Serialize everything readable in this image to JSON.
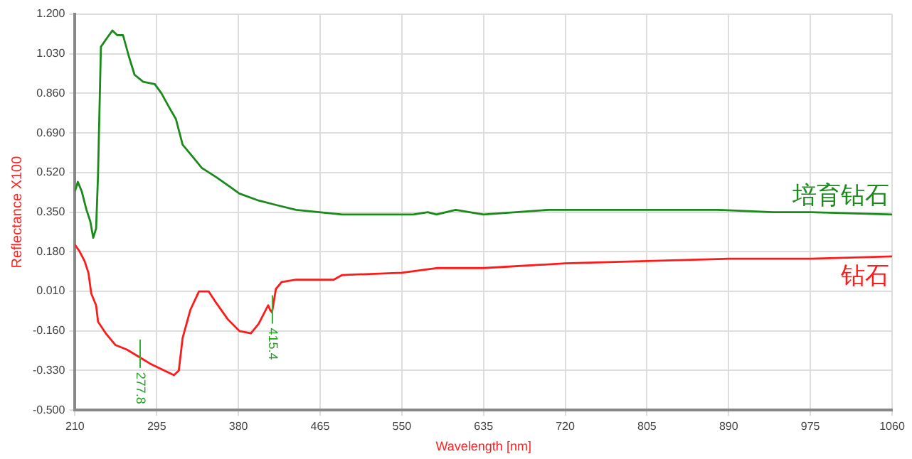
{
  "chart_data": {
    "type": "line",
    "xlabel": "Wavelength [nm]",
    "ylabel": "Reflectance X100",
    "xlim": [
      210,
      1060
    ],
    "xticks": [
      210,
      295,
      380,
      465,
      550,
      635,
      720,
      805,
      890,
      975,
      1060
    ],
    "ylim": [
      -0.5,
      1.2
    ],
    "yticks": [
      {
        "value": -0.5,
        "label": "-0.500"
      },
      {
        "value": -0.33,
        "label": "-0.330"
      },
      {
        "value": -0.16,
        "label": "-0.160"
      },
      {
        "value": 0.01,
        "label": "0.010"
      },
      {
        "value": 0.18,
        "label": "0.180"
      },
      {
        "value": 0.35,
        "label": "0.350"
      },
      {
        "value": 0.52,
        "label": "0.520"
      },
      {
        "value": 0.69,
        "label": "0.690"
      },
      {
        "value": 0.86,
        "label": "0.860"
      },
      {
        "value": 1.03,
        "label": "1.030"
      },
      {
        "value": 1.2,
        "label": "1.200"
      }
    ],
    "grid": true,
    "legend": false,
    "marker": "none",
    "line_style": "solid",
    "series": [
      {
        "name": "培育钻石",
        "color": "#1a8a1a",
        "x": [
          210,
          213,
          217,
          222,
          226,
          229,
          232,
          234,
          237,
          242,
          249,
          254,
          260,
          266,
          272,
          281,
          293,
          300,
          308,
          315,
          322,
          332,
          342,
          357,
          371,
          381,
          401,
          420,
          440,
          464,
          488,
          518,
          537,
          562,
          577,
          586,
          606,
          635,
          703,
          720,
          805,
          878,
          936,
          975,
          1060
        ],
        "values": [
          0.44,
          0.48,
          0.44,
          0.36,
          0.31,
          0.24,
          0.28,
          0.51,
          1.06,
          1.09,
          1.13,
          1.11,
          1.11,
          1.02,
          0.94,
          0.91,
          0.9,
          0.86,
          0.8,
          0.75,
          0.64,
          0.59,
          0.54,
          0.5,
          0.46,
          0.43,
          0.4,
          0.38,
          0.36,
          0.35,
          0.34,
          0.34,
          0.34,
          0.34,
          0.35,
          0.34,
          0.36,
          0.34,
          0.36,
          0.36,
          0.36,
          0.36,
          0.35,
          0.35,
          0.34
        ]
      },
      {
        "name": "钻石",
        "color": "#ff1a1a",
        "x": [
          210,
          215,
          220,
          224,
          227,
          232,
          234,
          242,
          252,
          264,
          276,
          288,
          303,
          313,
          318,
          322,
          330,
          339,
          349,
          357,
          369,
          381,
          393,
          401,
          411,
          413,
          415,
          419,
          425,
          440,
          479,
          488,
          550,
          586,
          635,
          720,
          805,
          890,
          975,
          1060
        ],
        "values": [
          0.21,
          0.18,
          0.14,
          0.09,
          0.0,
          -0.05,
          -0.12,
          -0.17,
          -0.22,
          -0.24,
          -0.27,
          -0.3,
          -0.33,
          -0.35,
          -0.33,
          -0.19,
          -0.07,
          0.01,
          0.01,
          -0.04,
          -0.11,
          -0.16,
          -0.17,
          -0.13,
          -0.05,
          -0.07,
          -0.08,
          0.02,
          0.05,
          0.06,
          0.06,
          0.08,
          0.09,
          0.11,
          0.11,
          0.13,
          0.14,
          0.15,
          0.15,
          0.16
        ]
      }
    ],
    "annotations": [
      {
        "text": "277.8",
        "x": 277.8,
        "y": -0.27
      },
      {
        "text": "415.4",
        "x": 415.4,
        "y": -0.08
      }
    ]
  }
}
